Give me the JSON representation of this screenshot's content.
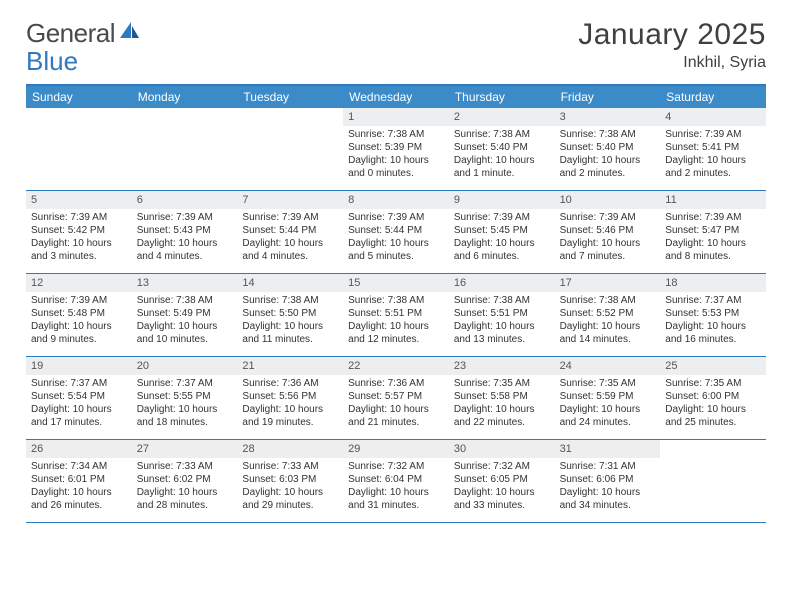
{
  "brand": {
    "word1": "General",
    "word2": "Blue"
  },
  "title": "January 2025",
  "location": "Inkhil, Syria",
  "colors": {
    "brand_blue": "#2f7abf",
    "header_blue": "#3b8bc9",
    "daybar_gray": "#eceeef",
    "text_dark": "#404040"
  },
  "day_names": [
    "Sunday",
    "Monday",
    "Tuesday",
    "Wednesday",
    "Thursday",
    "Friday",
    "Saturday"
  ],
  "weeks": [
    [
      {
        "empty": true
      },
      {
        "empty": true
      },
      {
        "empty": true
      },
      {
        "day": "1",
        "sunrise": "7:38 AM",
        "sunset": "5:39 PM",
        "daylight": "10 hours and 0 minutes."
      },
      {
        "day": "2",
        "sunrise": "7:38 AM",
        "sunset": "5:40 PM",
        "daylight": "10 hours and 1 minute."
      },
      {
        "day": "3",
        "sunrise": "7:38 AM",
        "sunset": "5:40 PM",
        "daylight": "10 hours and 2 minutes."
      },
      {
        "day": "4",
        "sunrise": "7:39 AM",
        "sunset": "5:41 PM",
        "daylight": "10 hours and 2 minutes."
      }
    ],
    [
      {
        "day": "5",
        "sunrise": "7:39 AM",
        "sunset": "5:42 PM",
        "daylight": "10 hours and 3 minutes."
      },
      {
        "day": "6",
        "sunrise": "7:39 AM",
        "sunset": "5:43 PM",
        "daylight": "10 hours and 4 minutes."
      },
      {
        "day": "7",
        "sunrise": "7:39 AM",
        "sunset": "5:44 PM",
        "daylight": "10 hours and 4 minutes."
      },
      {
        "day": "8",
        "sunrise": "7:39 AM",
        "sunset": "5:44 PM",
        "daylight": "10 hours and 5 minutes."
      },
      {
        "day": "9",
        "sunrise": "7:39 AM",
        "sunset": "5:45 PM",
        "daylight": "10 hours and 6 minutes."
      },
      {
        "day": "10",
        "sunrise": "7:39 AM",
        "sunset": "5:46 PM",
        "daylight": "10 hours and 7 minutes."
      },
      {
        "day": "11",
        "sunrise": "7:39 AM",
        "sunset": "5:47 PM",
        "daylight": "10 hours and 8 minutes."
      }
    ],
    [
      {
        "day": "12",
        "sunrise": "7:39 AM",
        "sunset": "5:48 PM",
        "daylight": "10 hours and 9 minutes."
      },
      {
        "day": "13",
        "sunrise": "7:38 AM",
        "sunset": "5:49 PM",
        "daylight": "10 hours and 10 minutes."
      },
      {
        "day": "14",
        "sunrise": "7:38 AM",
        "sunset": "5:50 PM",
        "daylight": "10 hours and 11 minutes."
      },
      {
        "day": "15",
        "sunrise": "7:38 AM",
        "sunset": "5:51 PM",
        "daylight": "10 hours and 12 minutes."
      },
      {
        "day": "16",
        "sunrise": "7:38 AM",
        "sunset": "5:51 PM",
        "daylight": "10 hours and 13 minutes."
      },
      {
        "day": "17",
        "sunrise": "7:38 AM",
        "sunset": "5:52 PM",
        "daylight": "10 hours and 14 minutes."
      },
      {
        "day": "18",
        "sunrise": "7:37 AM",
        "sunset": "5:53 PM",
        "daylight": "10 hours and 16 minutes."
      }
    ],
    [
      {
        "day": "19",
        "sunrise": "7:37 AM",
        "sunset": "5:54 PM",
        "daylight": "10 hours and 17 minutes."
      },
      {
        "day": "20",
        "sunrise": "7:37 AM",
        "sunset": "5:55 PM",
        "daylight": "10 hours and 18 minutes."
      },
      {
        "day": "21",
        "sunrise": "7:36 AM",
        "sunset": "5:56 PM",
        "daylight": "10 hours and 19 minutes."
      },
      {
        "day": "22",
        "sunrise": "7:36 AM",
        "sunset": "5:57 PM",
        "daylight": "10 hours and 21 minutes."
      },
      {
        "day": "23",
        "sunrise": "7:35 AM",
        "sunset": "5:58 PM",
        "daylight": "10 hours and 22 minutes."
      },
      {
        "day": "24",
        "sunrise": "7:35 AM",
        "sunset": "5:59 PM",
        "daylight": "10 hours and 24 minutes."
      },
      {
        "day": "25",
        "sunrise": "7:35 AM",
        "sunset": "6:00 PM",
        "daylight": "10 hours and 25 minutes."
      }
    ],
    [
      {
        "day": "26",
        "sunrise": "7:34 AM",
        "sunset": "6:01 PM",
        "daylight": "10 hours and 26 minutes."
      },
      {
        "day": "27",
        "sunrise": "7:33 AM",
        "sunset": "6:02 PM",
        "daylight": "10 hours and 28 minutes."
      },
      {
        "day": "28",
        "sunrise": "7:33 AM",
        "sunset": "6:03 PM",
        "daylight": "10 hours and 29 minutes."
      },
      {
        "day": "29",
        "sunrise": "7:32 AM",
        "sunset": "6:04 PM",
        "daylight": "10 hours and 31 minutes."
      },
      {
        "day": "30",
        "sunrise": "7:32 AM",
        "sunset": "6:05 PM",
        "daylight": "10 hours and 33 minutes."
      },
      {
        "day": "31",
        "sunrise": "7:31 AM",
        "sunset": "6:06 PM",
        "daylight": "10 hours and 34 minutes."
      },
      {
        "empty": true
      }
    ]
  ]
}
